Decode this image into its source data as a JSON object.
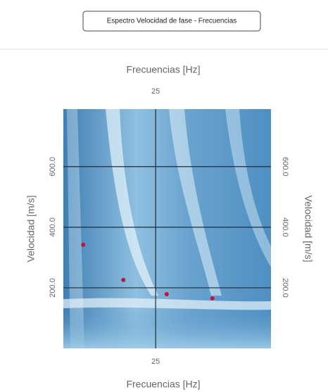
{
  "button": {
    "label": "Espectro Velocidad de fase - Frecuencias"
  },
  "chart_data": {
    "type": "scatter",
    "xlabel": "Frecuencias [Hz]",
    "ylabel": "Velocidad [m/s]",
    "xlim": [
      5,
      50
    ],
    "ylim": [
      0,
      790
    ],
    "xticks": [
      25
    ],
    "yticks": [
      {
        "value": 200,
        "label": "200.0"
      },
      {
        "value": 400,
        "label": "400.0"
      },
      {
        "value": 600,
        "label": "600.0"
      }
    ],
    "grid": true,
    "color": "#c0143c",
    "x": [
      9.3,
      18.0,
      27.4,
      37.3
    ],
    "values": [
      342,
      226,
      179,
      165
    ]
  }
}
